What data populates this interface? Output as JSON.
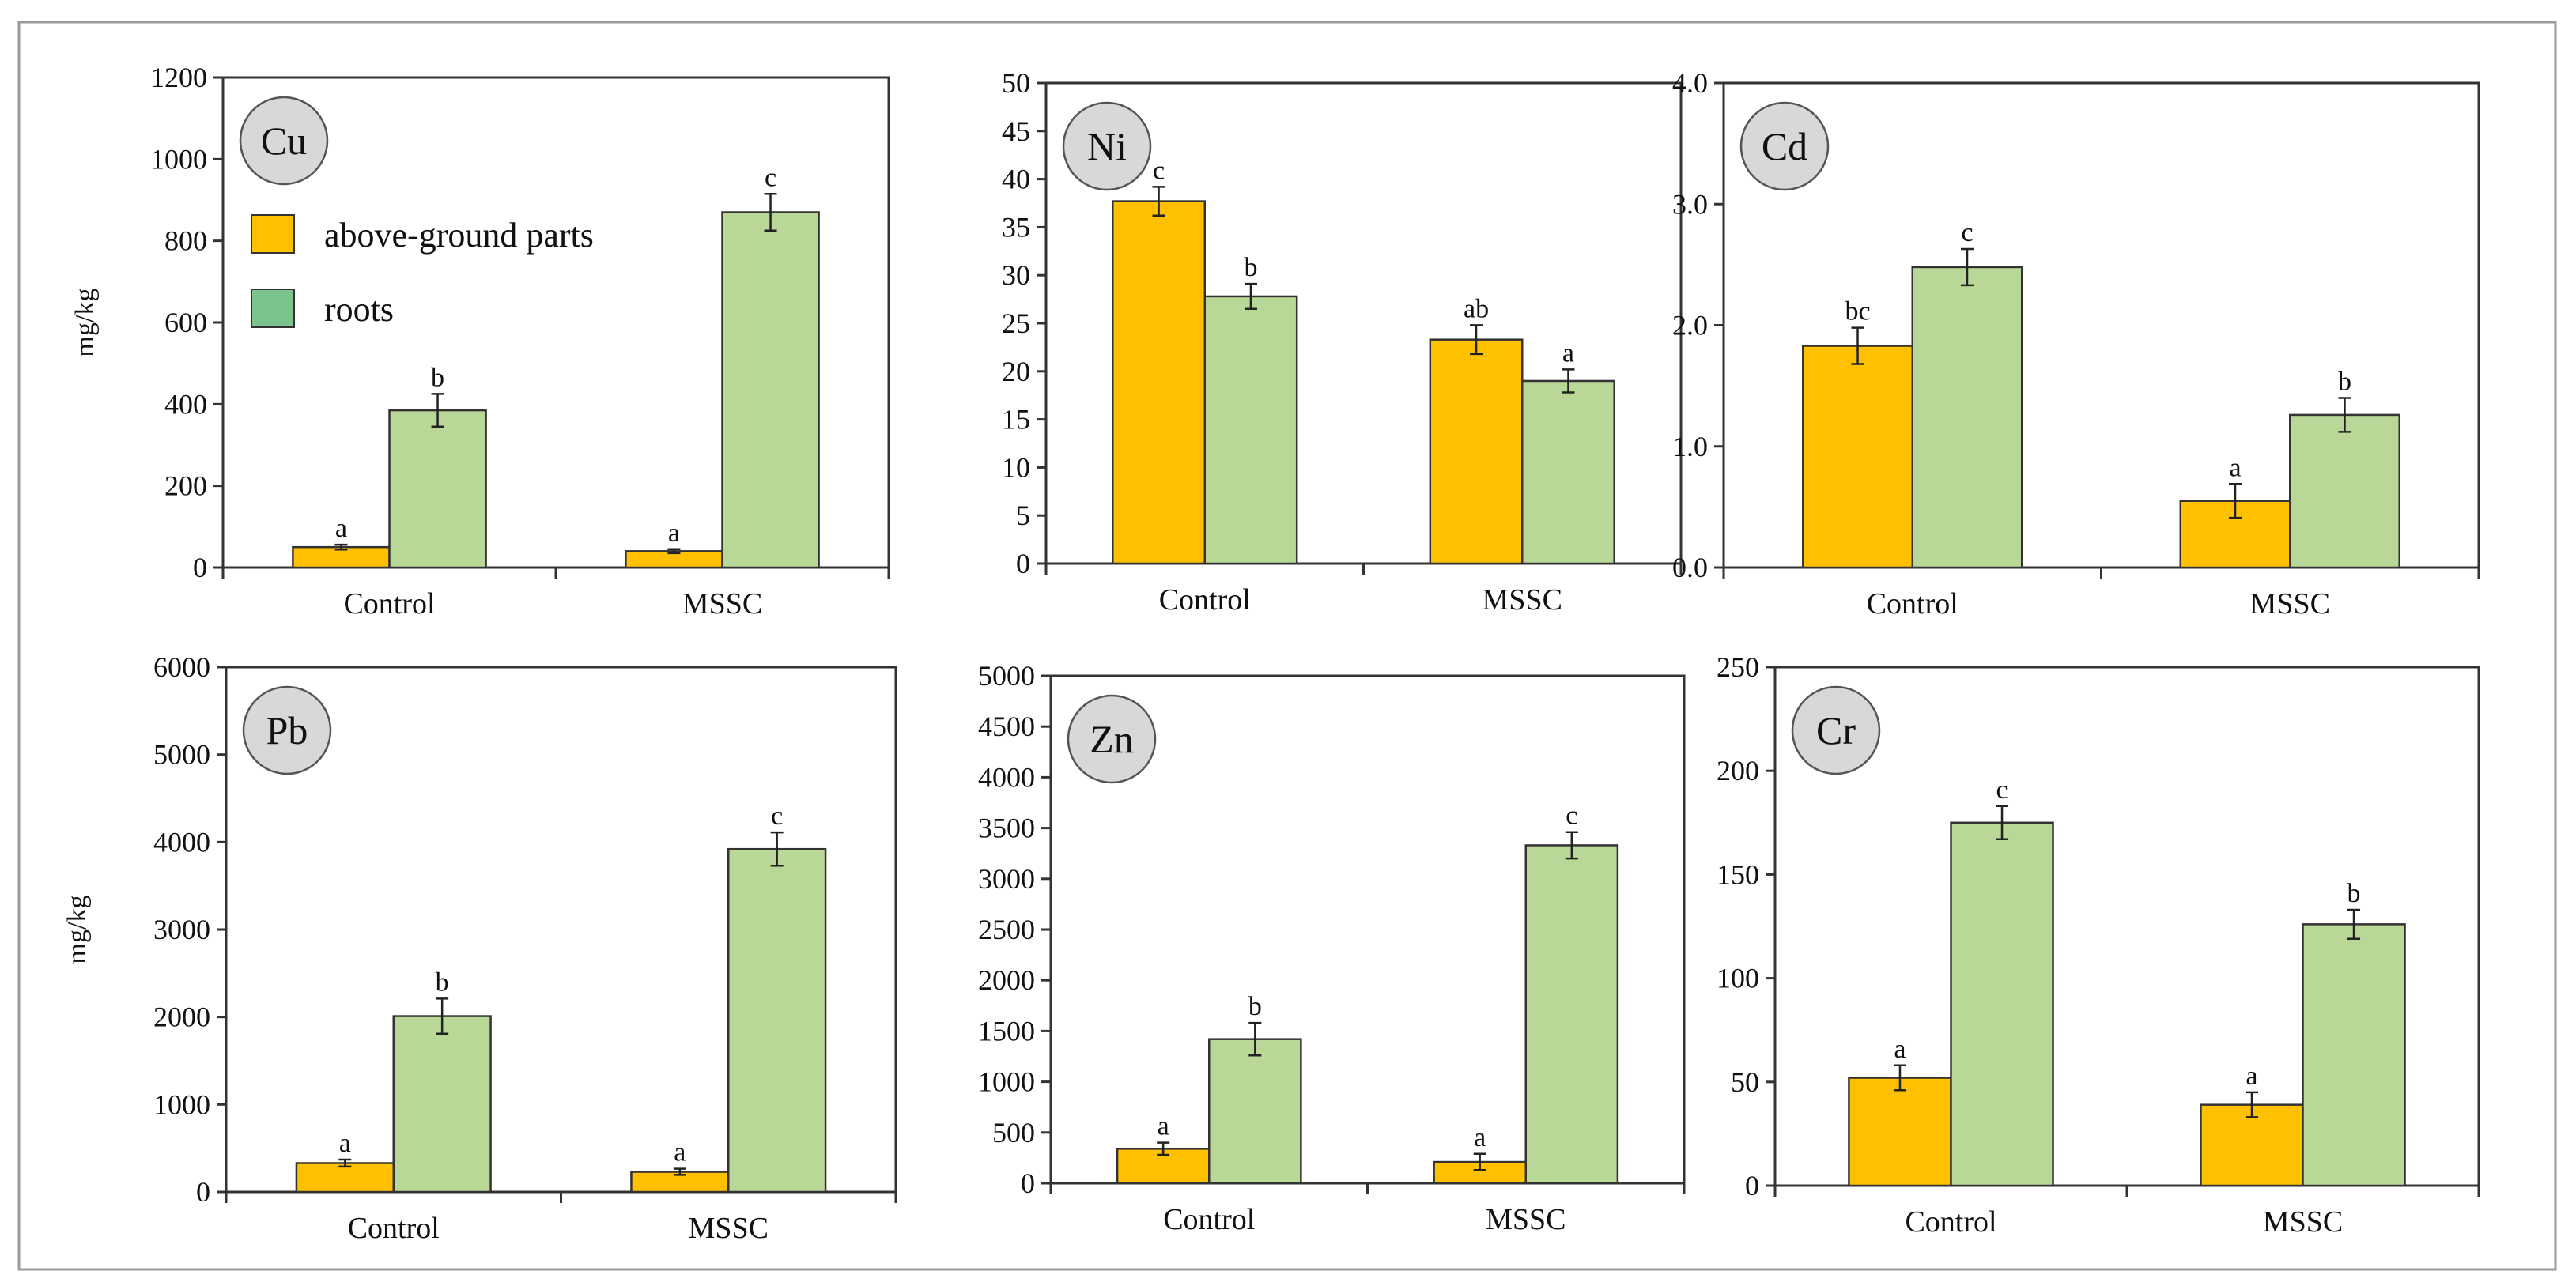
{
  "colors": {
    "above": "#FFC000",
    "roots": "#B9D898",
    "badge": "#D8D8D8",
    "legend_roots_swatch": "#7CC48E",
    "axis": "#333333"
  },
  "legend": {
    "above": "above-ground parts",
    "roots": "roots"
  },
  "chart_data": [
    {
      "type": "bar",
      "title": "Cu",
      "ylabel": "mg/kg",
      "categories": [
        "Control",
        "MSSC"
      ],
      "ylim": [
        0,
        1200
      ],
      "yticks": [
        0,
        200,
        400,
        600,
        800,
        1000,
        1200
      ],
      "tick_labels": [
        "0",
        "200",
        "400",
        "600",
        "800",
        "1000",
        "1200"
      ],
      "series": [
        {
          "name": "above-ground parts",
          "values": [
            50,
            40
          ],
          "errors": [
            6,
            5
          ],
          "letters": [
            "a",
            "a"
          ]
        },
        {
          "name": "roots",
          "values": [
            385,
            870
          ],
          "errors": [
            40,
            45
          ],
          "letters": [
            "b",
            "c"
          ]
        }
      ]
    },
    {
      "type": "bar",
      "title": "Ni",
      "ylabel": "",
      "categories": [
        "Control",
        "MSSC"
      ],
      "ylim": [
        0,
        50
      ],
      "yticks": [
        0,
        5,
        10,
        15,
        20,
        25,
        30,
        35,
        40,
        45,
        50
      ],
      "tick_labels": [
        "0",
        "5",
        "10",
        "15",
        "20",
        "25",
        "30",
        "35",
        "40",
        "45",
        "50"
      ],
      "series": [
        {
          "name": "above-ground parts",
          "values": [
            37.7,
            23.3
          ],
          "errors": [
            1.5,
            1.5
          ],
          "letters": [
            "c",
            "ab"
          ]
        },
        {
          "name": "roots",
          "values": [
            27.8,
            19
          ],
          "errors": [
            1.3,
            1.2
          ],
          "letters": [
            "b",
            "a"
          ]
        }
      ]
    },
    {
      "type": "bar",
      "title": "Cd",
      "ylabel": "",
      "categories": [
        "Control",
        "MSSC"
      ],
      "ylim": [
        0,
        4
      ],
      "yticks": [
        0,
        1,
        2,
        3,
        4
      ],
      "tick_labels": [
        "0.0",
        "1.0",
        "2.0",
        "3.0",
        "4.0"
      ],
      "series": [
        {
          "name": "above-ground parts",
          "values": [
            1.83,
            0.55
          ],
          "errors": [
            0.15,
            0.14
          ],
          "letters": [
            "bc",
            "a"
          ]
        },
        {
          "name": "roots",
          "values": [
            2.48,
            1.26
          ],
          "errors": [
            0.15,
            0.14
          ],
          "letters": [
            "c",
            "b"
          ]
        }
      ]
    },
    {
      "type": "bar",
      "title": "Pb",
      "ylabel": "mg/kg",
      "categories": [
        "Control",
        "MSSC"
      ],
      "ylim": [
        0,
        6000
      ],
      "yticks": [
        0,
        1000,
        2000,
        3000,
        4000,
        5000,
        6000
      ],
      "tick_labels": [
        "0",
        "1000",
        "2000",
        "3000",
        "4000",
        "5000",
        "6000"
      ],
      "series": [
        {
          "name": "above-ground parts",
          "values": [
            330,
            230
          ],
          "errors": [
            40,
            35
          ],
          "letters": [
            "a",
            "a"
          ]
        },
        {
          "name": "roots",
          "values": [
            2010,
            3920
          ],
          "errors": [
            200,
            190
          ],
          "letters": [
            "b",
            "c"
          ]
        }
      ]
    },
    {
      "type": "bar",
      "title": "Zn",
      "ylabel": "",
      "categories": [
        "Control",
        "MSSC"
      ],
      "ylim": [
        0,
        5000
      ],
      "yticks": [
        0,
        500,
        1000,
        1500,
        2000,
        2500,
        3000,
        3500,
        4000,
        4500,
        5000
      ],
      "tick_labels": [
        "0",
        "500",
        "1000",
        "1500",
        "2000",
        "2500",
        "3000",
        "3500",
        "4000",
        "4500",
        "5000"
      ],
      "series": [
        {
          "name": "above-ground parts",
          "values": [
            340,
            210
          ],
          "errors": [
            60,
            80
          ],
          "letters": [
            "a",
            "a"
          ]
        },
        {
          "name": "roots",
          "values": [
            1420,
            3330
          ],
          "errors": [
            160,
            130
          ],
          "letters": [
            "b",
            "c"
          ]
        }
      ]
    },
    {
      "type": "bar",
      "title": "Cr",
      "ylabel": "",
      "categories": [
        "Control",
        "MSSC"
      ],
      "ylim": [
        0,
        250
      ],
      "yticks": [
        0,
        50,
        100,
        150,
        200,
        250
      ],
      "tick_labels": [
        "0",
        "50",
        "100",
        "150",
        "200",
        "250"
      ],
      "series": [
        {
          "name": "above-ground parts",
          "values": [
            52,
            39
          ],
          "errors": [
            6,
            6
          ],
          "letters": [
            "a",
            "a"
          ]
        },
        {
          "name": "roots",
          "values": [
            175,
            126
          ],
          "errors": [
            8,
            7
          ],
          "letters": [
            "c",
            "b"
          ]
        }
      ]
    }
  ]
}
